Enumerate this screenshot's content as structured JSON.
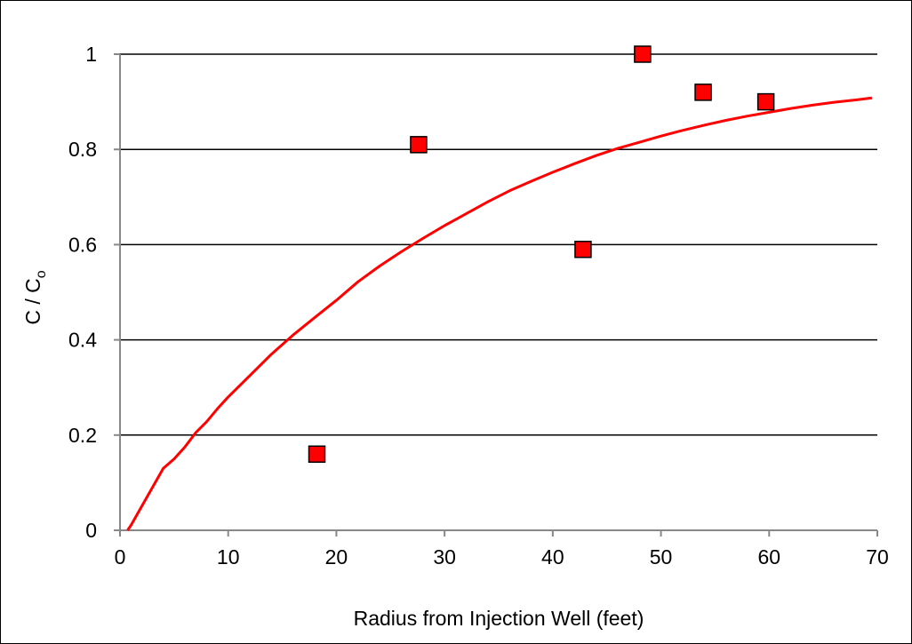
{
  "chart_data": {
    "type": "scatter",
    "title": "",
    "xlabel": "Radius from Injection Well (feet)",
    "ylabel_main": "C / C",
    "ylabel_subscript": "o",
    "xlim": [
      0,
      70
    ],
    "ylim": [
      0,
      1
    ],
    "x_ticks": [
      0,
      10,
      20,
      30,
      40,
      50,
      60,
      70
    ],
    "y_ticks": [
      0,
      0.2,
      0.4,
      0.6,
      0.8,
      1
    ],
    "y_tick_labels": [
      "0",
      "0.2",
      "0.4",
      "0.6",
      "0.8",
      "1"
    ],
    "grid": "horizontal",
    "legend": "none",
    "series": [
      {
        "kind": "points",
        "marker": "square",
        "color": "#ff0000",
        "x": [
          18.2,
          27.6,
          42.8,
          48.3,
          53.9,
          59.7
        ],
        "y": [
          0.16,
          0.81,
          0.59,
          1.0,
          0.92,
          0.9
        ]
      },
      {
        "kind": "line",
        "color": "#ff0000",
        "x": [
          0.7,
          1,
          2,
          3,
          4,
          5,
          6,
          7,
          8,
          9,
          10,
          12,
          14,
          16,
          18,
          20,
          22,
          24,
          26,
          28,
          30,
          32,
          34,
          36,
          38,
          40,
          42,
          44,
          46,
          48,
          50,
          52,
          54,
          56,
          58,
          60,
          62,
          64,
          66,
          68,
          69.5
        ],
        "y": [
          0.0,
          0.01,
          0.05,
          0.09,
          0.13,
          0.15,
          0.175,
          0.205,
          0.228,
          0.255,
          0.28,
          0.325,
          0.37,
          0.41,
          0.447,
          0.483,
          0.522,
          0.555,
          0.585,
          0.613,
          0.64,
          0.665,
          0.69,
          0.713,
          0.733,
          0.752,
          0.77,
          0.787,
          0.802,
          0.815,
          0.828,
          0.84,
          0.851,
          0.861,
          0.87,
          0.878,
          0.886,
          0.893,
          0.899,
          0.904,
          0.908
        ]
      }
    ]
  }
}
